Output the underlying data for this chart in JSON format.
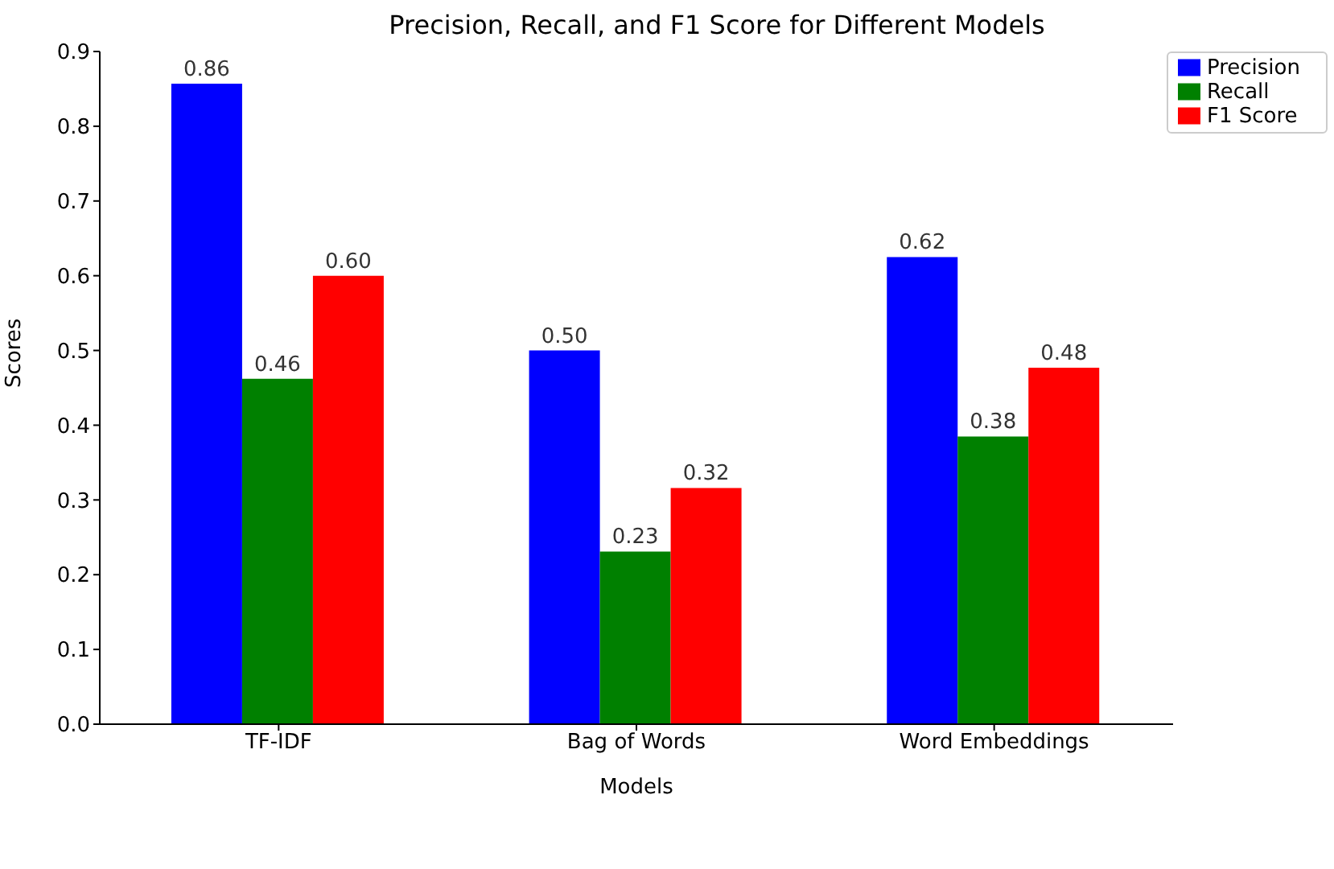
{
  "chart_data": {
    "type": "bar",
    "title": "Precision, Recall, and F1 Score for Different Models",
    "xlabel": "Models",
    "ylabel": "Scores",
    "categories": [
      "TF-IDF",
      "Bag of Words",
      "Word Embeddings"
    ],
    "series": [
      {
        "name": "Precision",
        "color": "#0000ff",
        "values": [
          0.857,
          0.5,
          0.625
        ],
        "value_labels": [
          "0.86",
          "0.50",
          "0.62"
        ]
      },
      {
        "name": "Recall",
        "color": "#008000",
        "values": [
          0.462,
          0.231,
          0.385
        ],
        "value_labels": [
          "0.46",
          "0.23",
          "0.38"
        ]
      },
      {
        "name": "F1 Score",
        "color": "#ff0000",
        "values": [
          0.6,
          0.316,
          0.477
        ],
        "value_labels": [
          "0.60",
          "0.32",
          "0.48"
        ]
      }
    ],
    "ylim": [
      0,
      0.9
    ],
    "yticks": [
      {
        "value": 0,
        "label": "0.0"
      },
      0.1,
      0.2,
      0.3,
      0.4,
      0.5,
      0.6,
      0.7,
      0.8,
      0.9
    ],
    "grid": false,
    "legend": "top right"
  }
}
